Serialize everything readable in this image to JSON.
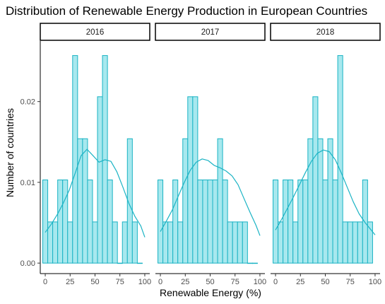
{
  "chart_data": {
    "type": "histogram",
    "title": "Distribution of Renewable Energy Production in European Countries",
    "xlabel": "Renewable Energy (%)",
    "ylabel": "Number of countries",
    "xlim": [
      -5,
      105
    ],
    "ylim": [
      -0.0013,
      0.0275
    ],
    "x_ticks": [
      0,
      25,
      50,
      75,
      100
    ],
    "y_ticks": [
      0.0,
      0.01,
      0.02
    ],
    "y_tick_labels": [
      "0.00",
      "0.01",
      "0.02"
    ],
    "bin_width": 5,
    "bins_start": [
      0,
      5,
      10,
      15,
      20,
      25,
      30,
      35,
      40,
      45,
      50,
      55,
      60,
      65,
      70,
      75,
      80,
      85,
      90,
      95
    ],
    "fill_color": "#a8e8ee",
    "line_color": "#1ab3c4",
    "panels": [
      {
        "label": "2016",
        "values": [
          0.0103,
          0.0051,
          0.0051,
          0.0103,
          0.0103,
          0.0051,
          0.0257,
          0.0154,
          0.0154,
          0.0103,
          0.0051,
          0.0206,
          0.0257,
          0.0103,
          0.0051,
          0.0,
          0.0051,
          0.0154,
          0.0051,
          0.0
        ],
        "density": [
          0.0038,
          0.0048,
          0.006,
          0.0074,
          0.009,
          0.0111,
          0.0133,
          0.0141,
          0.0133,
          0.0125,
          0.0128,
          0.0126,
          0.0113,
          0.0094,
          0.0074,
          0.0058,
          0.0046,
          0.0032
        ]
      },
      {
        "label": "2017",
        "values": [
          0.0103,
          0.0051,
          0.0051,
          0.0103,
          0.0051,
          0.0154,
          0.0206,
          0.0206,
          0.0103,
          0.0103,
          0.0103,
          0.0103,
          0.0154,
          0.0103,
          0.0051,
          0.0051,
          0.0051,
          0.0051,
          0.0,
          0.0
        ],
        "density": [
          0.0039,
          0.0052,
          0.0066,
          0.0083,
          0.01,
          0.0115,
          0.0125,
          0.0129,
          0.0127,
          0.0121,
          0.0118,
          0.0114,
          0.0108,
          0.0097,
          0.008,
          0.0063,
          0.0047,
          0.0034
        ]
      },
      {
        "label": "2018",
        "values": [
          0.0103,
          0.0051,
          0.0103,
          0.0103,
          0.0051,
          0.0103,
          0.0103,
          0.0154,
          0.0206,
          0.0154,
          0.0103,
          0.0154,
          0.0103,
          0.0257,
          0.0051,
          0.0051,
          0.0051,
          0.0051,
          0.0103,
          0.0051
        ],
        "density": [
          0.0041,
          0.0054,
          0.0068,
          0.0082,
          0.0097,
          0.0112,
          0.0126,
          0.0136,
          0.014,
          0.0138,
          0.0128,
          0.0112,
          0.0094,
          0.0076,
          0.0061,
          0.005,
          0.0041,
          0.0035
        ]
      }
    ],
    "density_x": [
      0,
      6,
      12,
      18,
      24,
      30,
      36,
      42,
      48,
      54,
      60,
      66,
      72,
      78,
      84,
      90,
      96,
      100
    ]
  }
}
